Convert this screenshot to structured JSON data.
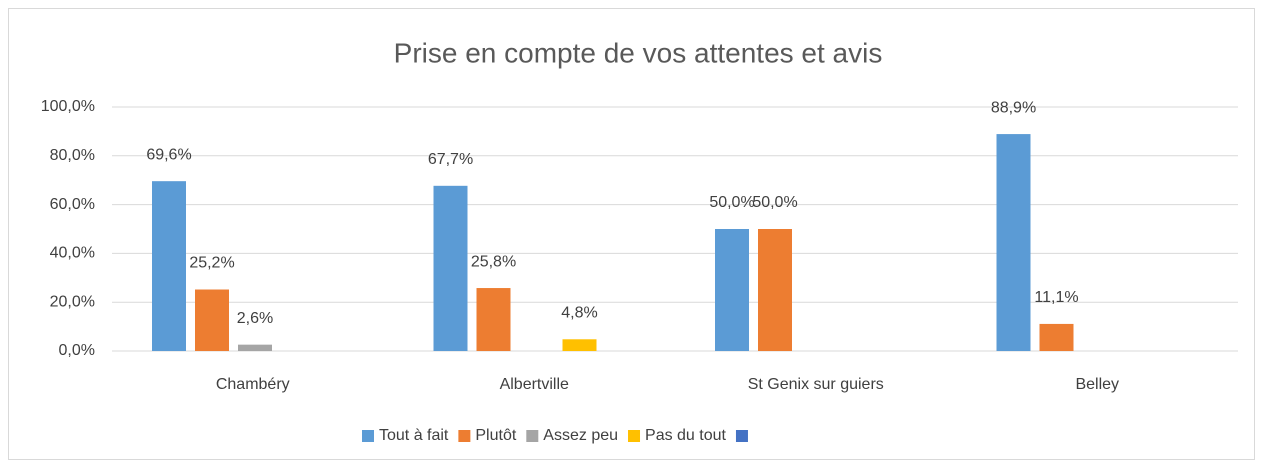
{
  "chart_data": {
    "type": "bar",
    "title": "Prise en compte de vos attentes et avis",
    "categories": [
      "Chambéry",
      "Albertville",
      "St Genix sur guiers",
      "Belley"
    ],
    "series": [
      {
        "name": "Tout à fait",
        "color": "#5b9bd5",
        "values": [
          69.6,
          67.7,
          50,
          88.9
        ],
        "value_labels": [
          "69,6%",
          "67,7%",
          "50,0%",
          "88,9%"
        ]
      },
      {
        "name": "Plutôt",
        "color": "#ed7d31",
        "values": [
          25.2,
          25.8,
          50,
          11.1
        ],
        "value_labels": [
          "25,2%",
          "25,8%",
          "50,0%",
          "11,1%"
        ]
      },
      {
        "name": "Assez peu",
        "color": "#a5a5a5",
        "values": [
          2.6,
          null,
          null,
          null
        ],
        "value_labels": [
          "2,6%",
          null,
          null,
          null
        ]
      },
      {
        "name": "Pas du tout",
        "color": "#ffc000",
        "values": [
          null,
          4.8,
          null,
          null
        ],
        "value_labels": [
          null,
          "4,8%",
          null,
          null
        ]
      },
      {
        "name": null,
        "color": "#4472c4",
        "values": [
          null,
          null,
          null,
          null
        ]
      }
    ],
    "ylim": [
      0,
      100
    ],
    "yticks": [
      {
        "value": 0,
        "label": "0,0%"
      },
      {
        "value": 20,
        "label": "20,0%"
      },
      {
        "value": 40,
        "label": "40,0%"
      },
      {
        "value": 60,
        "label": "60,0%"
      },
      {
        "value": 80,
        "label": "80,0%"
      },
      {
        "value": 100,
        "label": "100,0%"
      }
    ],
    "grid": true,
    "legend": "bottom"
  }
}
